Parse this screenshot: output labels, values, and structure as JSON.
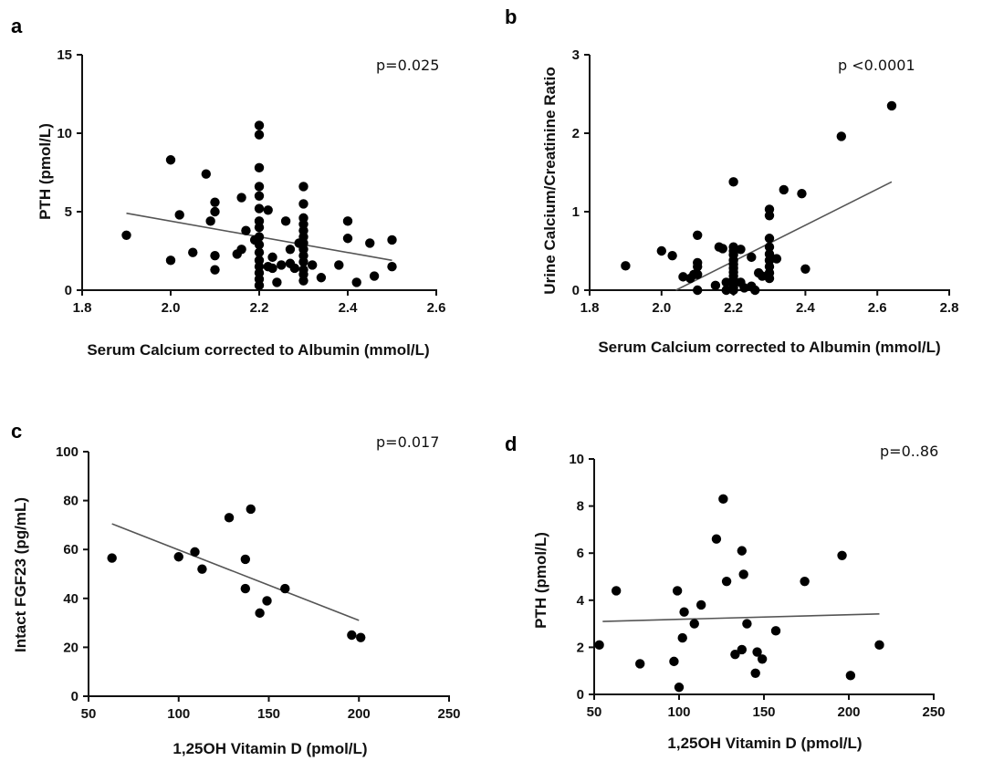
{
  "chart_data": [
    {
      "panel": "a",
      "type": "scatter",
      "annotation": "p=0.025",
      "xlabel": "Serum Calcium corrected to Albumin (mmol/L)",
      "ylabel": "PTH (pmol/L)",
      "xlim": [
        1.8,
        2.6
      ],
      "ylim": [
        0,
        15
      ],
      "xticks": [
        "1.8",
        "2.0",
        "2.2",
        "2.4",
        "2.6"
      ],
      "yticks": [
        "0",
        "5",
        "10",
        "15"
      ],
      "fit_line": {
        "x": [
          1.9,
          2.5
        ],
        "y": [
          4.9,
          1.9
        ]
      },
      "points": [
        [
          1.9,
          3.5
        ],
        [
          2.0,
          8.3
        ],
        [
          2.0,
          1.9
        ],
        [
          2.02,
          4.8
        ],
        [
          2.05,
          2.4
        ],
        [
          2.08,
          7.4
        ],
        [
          2.09,
          4.4
        ],
        [
          2.1,
          5.6
        ],
        [
          2.1,
          5.0
        ],
        [
          2.1,
          2.2
        ],
        [
          2.1,
          1.3
        ],
        [
          2.15,
          2.3
        ],
        [
          2.16,
          5.9
        ],
        [
          2.16,
          2.6
        ],
        [
          2.17,
          3.8
        ],
        [
          2.19,
          3.2
        ],
        [
          2.2,
          10.5
        ],
        [
          2.2,
          9.9
        ],
        [
          2.2,
          7.8
        ],
        [
          2.2,
          6.6
        ],
        [
          2.2,
          6.0
        ],
        [
          2.2,
          5.2
        ],
        [
          2.2,
          4.4
        ],
        [
          2.2,
          4.0
        ],
        [
          2.2,
          3.4
        ],
        [
          2.2,
          2.9
        ],
        [
          2.2,
          2.4
        ],
        [
          2.2,
          1.9
        ],
        [
          2.2,
          1.5
        ],
        [
          2.2,
          1.1
        ],
        [
          2.2,
          0.7
        ],
        [
          2.2,
          0.3
        ],
        [
          2.22,
          5.1
        ],
        [
          2.22,
          1.5
        ],
        [
          2.23,
          2.1
        ],
        [
          2.23,
          1.4
        ],
        [
          2.24,
          0.5
        ],
        [
          2.25,
          1.6
        ],
        [
          2.26,
          4.4
        ],
        [
          2.27,
          2.6
        ],
        [
          2.27,
          1.7
        ],
        [
          2.28,
          1.4
        ],
        [
          2.29,
          3.0
        ],
        [
          2.3,
          6.6
        ],
        [
          2.3,
          5.5
        ],
        [
          2.3,
          4.6
        ],
        [
          2.3,
          4.2
        ],
        [
          2.3,
          3.8
        ],
        [
          2.3,
          3.4
        ],
        [
          2.3,
          3.0
        ],
        [
          2.3,
          2.6
        ],
        [
          2.3,
          2.2
        ],
        [
          2.3,
          1.8
        ],
        [
          2.3,
          1.3
        ],
        [
          2.3,
          1.0
        ],
        [
          2.3,
          0.6
        ],
        [
          2.32,
          1.6
        ],
        [
          2.34,
          0.8
        ],
        [
          2.38,
          1.6
        ],
        [
          2.4,
          4.4
        ],
        [
          2.4,
          3.3
        ],
        [
          2.42,
          0.5
        ],
        [
          2.45,
          3.0
        ],
        [
          2.46,
          0.9
        ],
        [
          2.5,
          3.2
        ],
        [
          2.5,
          1.5
        ]
      ]
    },
    {
      "panel": "b",
      "type": "scatter",
      "annotation": "p <0.0001",
      "xlabel": "Serum Calcium corrected to Albumin (mmol/L)",
      "ylabel": "Urine Calcium/Creatinine Ratio",
      "xlim": [
        1.8,
        2.8
      ],
      "ylim": [
        0,
        3
      ],
      "xticks": [
        "1.8",
        "2.0",
        "2.2",
        "2.4",
        "2.6",
        "2.8"
      ],
      "yticks": [
        "0",
        "1",
        "2",
        "3"
      ],
      "fit_line": {
        "x": [
          2.04,
          2.64
        ],
        "y": [
          0.0,
          1.38
        ]
      },
      "points": [
        [
          1.9,
          0.31
        ],
        [
          2.0,
          0.5
        ],
        [
          2.03,
          0.44
        ],
        [
          2.06,
          0.17
        ],
        [
          2.08,
          0.15
        ],
        [
          2.09,
          0.2
        ],
        [
          2.1,
          0.7
        ],
        [
          2.1,
          0.35
        ],
        [
          2.1,
          0.3
        ],
        [
          2.1,
          0.2
        ],
        [
          2.1,
          0.0
        ],
        [
          2.15,
          0.06
        ],
        [
          2.16,
          0.55
        ],
        [
          2.17,
          0.53
        ],
        [
          2.18,
          0.1
        ],
        [
          2.18,
          0.0
        ],
        [
          2.2,
          1.38
        ],
        [
          2.2,
          0.55
        ],
        [
          2.2,
          0.5
        ],
        [
          2.2,
          0.45
        ],
        [
          2.2,
          0.38
        ],
        [
          2.2,
          0.33
        ],
        [
          2.2,
          0.28
        ],
        [
          2.2,
          0.23
        ],
        [
          2.2,
          0.18
        ],
        [
          2.2,
          0.13
        ],
        [
          2.2,
          0.08
        ],
        [
          2.2,
          0.03
        ],
        [
          2.2,
          0.0
        ],
        [
          2.22,
          0.52
        ],
        [
          2.22,
          0.1
        ],
        [
          2.23,
          0.03
        ],
        [
          2.25,
          0.05
        ],
        [
          2.25,
          0.42
        ],
        [
          2.26,
          0.0
        ],
        [
          2.27,
          0.22
        ],
        [
          2.28,
          0.18
        ],
        [
          2.3,
          1.03
        ],
        [
          2.3,
          0.95
        ],
        [
          2.3,
          0.66
        ],
        [
          2.3,
          0.55
        ],
        [
          2.3,
          0.46
        ],
        [
          2.3,
          0.38
        ],
        [
          2.3,
          0.3
        ],
        [
          2.3,
          0.22
        ],
        [
          2.3,
          0.15
        ],
        [
          2.32,
          0.4
        ],
        [
          2.34,
          1.28
        ],
        [
          2.39,
          1.23
        ],
        [
          2.4,
          0.27
        ],
        [
          2.5,
          1.96
        ],
        [
          2.64,
          2.35
        ]
      ]
    },
    {
      "panel": "c",
      "type": "scatter",
      "annotation": "p=0.017",
      "xlabel": "1,25OH Vitamin D (pmol/L)",
      "ylabel": "Intact FGF23 (pg/mL)",
      "xlim": [
        50,
        250
      ],
      "ylim": [
        0,
        100
      ],
      "xticks": [
        "50",
        "100",
        "150",
        "200",
        "250"
      ],
      "yticks": [
        "0",
        "20",
        "40",
        "60",
        "80",
        "100"
      ],
      "fit_line": {
        "x": [
          63,
          200
        ],
        "y": [
          70.5,
          31
        ]
      },
      "points": [
        [
          63,
          56.5
        ],
        [
          100,
          57
        ],
        [
          109,
          59
        ],
        [
          113,
          52
        ],
        [
          128,
          73
        ],
        [
          137,
          56
        ],
        [
          137,
          44
        ],
        [
          140,
          76.5
        ],
        [
          145,
          34
        ],
        [
          149,
          39
        ],
        [
          159,
          44
        ],
        [
          196,
          25
        ],
        [
          201,
          24
        ]
      ]
    },
    {
      "panel": "d",
      "type": "scatter",
      "annotation": "p=0..86",
      "xlabel": "1,25OH Vitamin D (pmol/L)",
      "ylabel": "PTH (pmol/L)",
      "xlim": [
        50,
        250
      ],
      "ylim": [
        0,
        10
      ],
      "xticks": [
        "50",
        "100",
        "150",
        "200",
        "250"
      ],
      "yticks": [
        "0",
        "2",
        "4",
        "6",
        "8",
        "10"
      ],
      "fit_line": {
        "x": [
          55,
          218
        ],
        "y": [
          3.1,
          3.42
        ]
      },
      "points": [
        [
          53,
          2.1
        ],
        [
          63,
          4.4
        ],
        [
          77,
          1.3
        ],
        [
          97,
          1.4
        ],
        [
          99,
          4.4
        ],
        [
          100,
          0.3
        ],
        [
          102,
          2.4
        ],
        [
          103,
          3.5
        ],
        [
          109,
          3.0
        ],
        [
          113,
          3.8
        ],
        [
          122,
          6.6
        ],
        [
          126,
          8.3
        ],
        [
          128,
          4.8
        ],
        [
          133,
          1.7
        ],
        [
          137,
          1.9
        ],
        [
          137,
          6.1
        ],
        [
          138,
          5.1
        ],
        [
          140,
          3.0
        ],
        [
          145,
          0.9
        ],
        [
          146,
          1.8
        ],
        [
          149,
          1.5
        ],
        [
          157,
          2.7
        ],
        [
          174,
          4.8
        ],
        [
          196,
          5.9
        ],
        [
          201,
          0.8
        ],
        [
          218,
          2.1
        ]
      ]
    }
  ]
}
